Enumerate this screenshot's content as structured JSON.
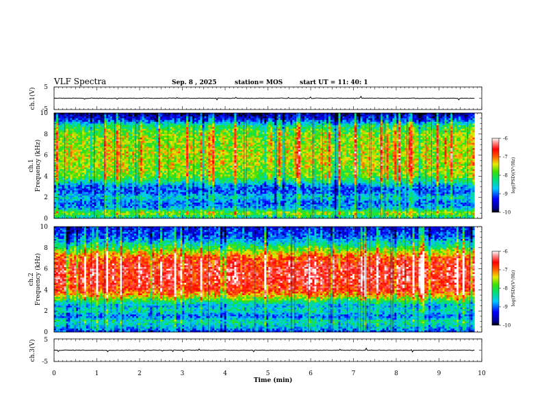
{
  "header": {
    "title": "VLF Spectra",
    "date": "Sep. 8 , 2025",
    "station": "station= MOS",
    "start": "start  UT =  11: 40: 1"
  },
  "chart_data": [
    {
      "type": "line",
      "panel": "ch1-waveform",
      "ylabel": "ch.1(V)",
      "ylim": [
        -5,
        5
      ],
      "yticks": [
        "5",
        "-5"
      ],
      "x_range_min": [
        0,
        9.83
      ],
      "values_note": "",
      "approx_level_V": 0,
      "color": "#000000"
    },
    {
      "type": "heatmap",
      "panel": "ch1-spectrogram",
      "ylabel": "ch.1\nFrequency (kHz)",
      "ylim_khz": [
        0,
        10
      ],
      "yticks": [
        "0",
        "2",
        "4",
        "6",
        "8",
        "10"
      ],
      "x_range_min": [
        0,
        9.83
      ],
      "colorbar": {
        "label": "log(PSD)(V²/Hz)",
        "range": [
          -10,
          -6
        ],
        "ticks": [
          "-6",
          "-7",
          "-8",
          "-9",
          "-10"
        ]
      },
      "band_profile_logpsd": [
        {
          "f_khz": 0.0,
          "v": -8.6
        },
        {
          "f_khz": 0.5,
          "v": -7.6
        },
        {
          "f_khz": 1.0,
          "v": -8.8
        },
        {
          "f_khz": 1.5,
          "v": -9.0
        },
        {
          "f_khz": 2.0,
          "v": -8.5
        },
        {
          "f_khz": 2.5,
          "v": -9.1
        },
        {
          "f_khz": 3.0,
          "v": -9.0
        },
        {
          "f_khz": 3.5,
          "v": -8.3
        },
        {
          "f_khz": 4.0,
          "v": -7.8
        },
        {
          "f_khz": 5.0,
          "v": -7.6
        },
        {
          "f_khz": 6.0,
          "v": -7.5
        },
        {
          "f_khz": 7.0,
          "v": -7.6
        },
        {
          "f_khz": 8.0,
          "v": -7.7
        },
        {
          "f_khz": 8.8,
          "v": -8.2
        },
        {
          "f_khz": 9.3,
          "v": -9.2
        },
        {
          "f_khz": 10.0,
          "v": -9.8
        }
      ]
    },
    {
      "type": "heatmap",
      "panel": "ch2-spectrogram",
      "ylabel": "ch.2\nFrequency (kHz)",
      "ylim_khz": [
        0,
        10
      ],
      "yticks": [
        "0",
        "2",
        "4",
        "6",
        "8",
        "10"
      ],
      "x_range_min": [
        0,
        9.83
      ],
      "colorbar": {
        "label": "log(PSD)(V²/Hz)",
        "range": [
          -10,
          -6
        ],
        "ticks": [
          "-6",
          "-7",
          "-8",
          "-9",
          "-10"
        ]
      },
      "band_profile_logpsd": [
        {
          "f_khz": 0.0,
          "v": -9.2
        },
        {
          "f_khz": 0.5,
          "v": -8.6
        },
        {
          "f_khz": 1.0,
          "v": -8.3
        },
        {
          "f_khz": 1.5,
          "v": -9.0
        },
        {
          "f_khz": 2.0,
          "v": -8.4
        },
        {
          "f_khz": 2.5,
          "v": -8.7
        },
        {
          "f_khz": 3.0,
          "v": -8.0
        },
        {
          "f_khz": 3.5,
          "v": -7.2
        },
        {
          "f_khz": 4.0,
          "v": -6.7
        },
        {
          "f_khz": 5.0,
          "v": -6.5
        },
        {
          "f_khz": 6.0,
          "v": -6.5
        },
        {
          "f_khz": 7.0,
          "v": -6.8
        },
        {
          "f_khz": 7.7,
          "v": -7.6
        },
        {
          "f_khz": 8.3,
          "v": -8.3
        },
        {
          "f_khz": 9.0,
          "v": -9.0
        },
        {
          "f_khz": 10.0,
          "v": -9.4
        }
      ]
    },
    {
      "type": "line",
      "panel": "ch3-waveform",
      "ylabel": "ch.3(V)",
      "ylim": [
        -5,
        5
      ],
      "yticks": [
        "5",
        "-5"
      ],
      "x_range_min": [
        0,
        9.83
      ],
      "approx_level_V": 0,
      "color": "#000000"
    }
  ],
  "xaxis": {
    "label": "Time (min)",
    "range": [
      0,
      10
    ],
    "ticks": [
      "0",
      "1",
      "2",
      "3",
      "4",
      "5",
      "6",
      "7",
      "8",
      "9",
      "10"
    ]
  }
}
